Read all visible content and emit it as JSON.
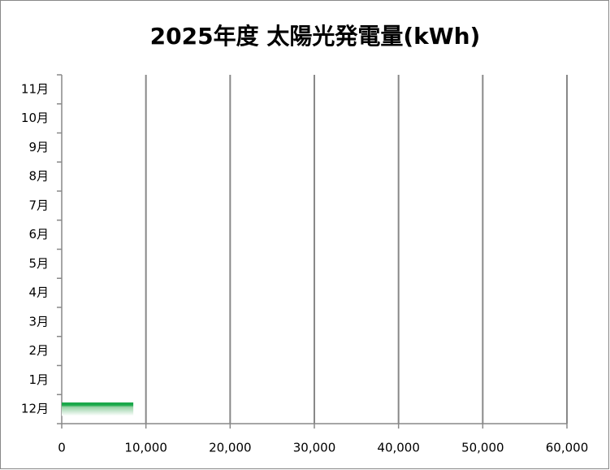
{
  "chart_data": {
    "type": "hbar",
    "title": "2025年度 太陽光発電量(kWh)",
    "categories": [
      "12月",
      "1月",
      "2月",
      "3月",
      "4月",
      "5月",
      "6月",
      "7月",
      "8月",
      "9月",
      "10月",
      "11月"
    ],
    "values": [
      8500,
      null,
      null,
      null,
      null,
      null,
      null,
      null,
      null,
      null,
      null,
      null
    ],
    "color": "#1aa84a",
    "xlim": [
      0,
      60000
    ],
    "xticks": [
      0,
      {
        "value": 10000,
        "label": "10,000"
      },
      {
        "value": 20000,
        "label": "20,000"
      },
      {
        "value": 30000,
        "label": "30,000"
      },
      {
        "value": 40000,
        "label": "40,000"
      },
      {
        "value": 50000,
        "label": "50,000"
      },
      {
        "value": 60000,
        "label": "60,000"
      }
    ],
    "grid": true
  }
}
